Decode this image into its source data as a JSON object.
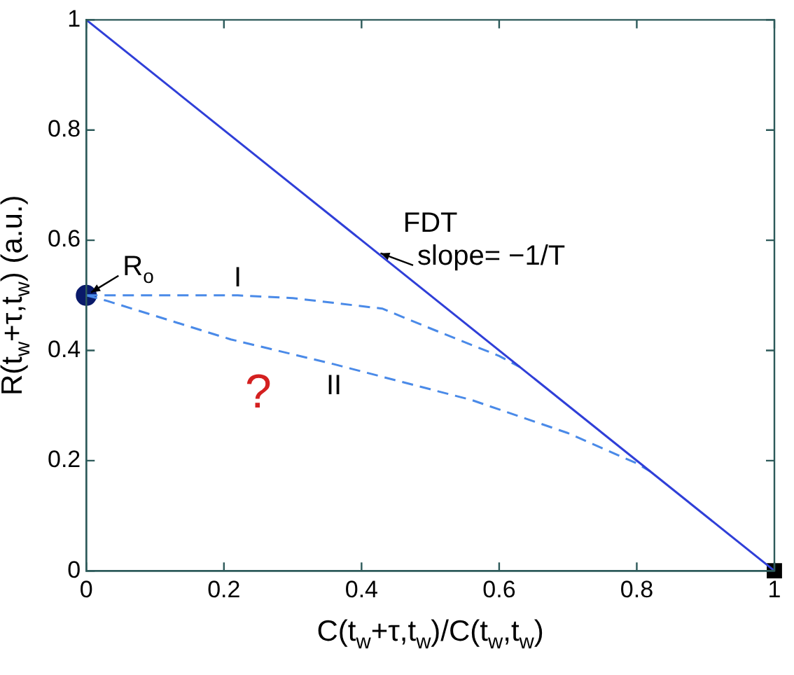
{
  "chart_data": {
    "type": "line",
    "xlabel": "C(t$_{w}$+τ,t$_{w}$)/C(t$_{w}$,t$_{w}$)",
    "ylabel": "R(t$_{w}$+τ,t$_{w}$) (a.u.)",
    "xlim": [
      0,
      1
    ],
    "ylim": [
      0,
      1
    ],
    "xticks": [
      0,
      0.2,
      0.4,
      0.6,
      0.8,
      1
    ],
    "yticks": [
      0,
      0.2,
      0.4,
      0.6,
      0.8,
      1
    ],
    "grid": false,
    "legend": false,
    "series": [
      {
        "type": "line",
        "color": "#2f3fd8",
        "line_style": "solid",
        "marker": "none",
        "x": [
          0,
          1
        ],
        "values": [
          1,
          0
        ]
      },
      {
        "type": "line",
        "color": "#4a8ae8",
        "line_style": "dashed",
        "marker": "none",
        "x": [
          0,
          0.1,
          0.22,
          0.3,
          0.43,
          0.5,
          0.6,
          0.63
        ],
        "values": [
          0.5,
          0.5,
          0.5,
          0.495,
          0.476,
          0.44,
          0.39,
          0.37
        ]
      },
      {
        "type": "line",
        "color": "#4a8ae8",
        "line_style": "dashed",
        "marker": "none",
        "x": [
          0,
          0.03,
          0.21,
          0.36,
          0.56,
          0.7,
          0.8,
          0.82
        ],
        "values": [
          0.5,
          0.49,
          0.42,
          0.375,
          0.31,
          0.25,
          0.195,
          0.18
        ]
      },
      {
        "type": "scatter",
        "color": "#0a1a6a",
        "marker": "circle",
        "x": [
          0
        ],
        "values": [
          0.5
        ]
      },
      {
        "type": "scatter",
        "color": "#000000",
        "marker": "square",
        "x": [
          1
        ],
        "values": [
          0
        ]
      }
    ],
    "annotations": [
      "FDT",
      {
        "text": "slope= −1/T",
        "x": 0.42,
        "y": 0.58
      },
      {
        "text": "R$_{o}$",
        "x": 0,
        "y": 0.5
      },
      {
        "text": "I",
        "x": 0.22,
        "y": 0.5
      },
      {
        "text": "II",
        "x": 0.36,
        "y": 0.375
      },
      "?"
    ]
  }
}
